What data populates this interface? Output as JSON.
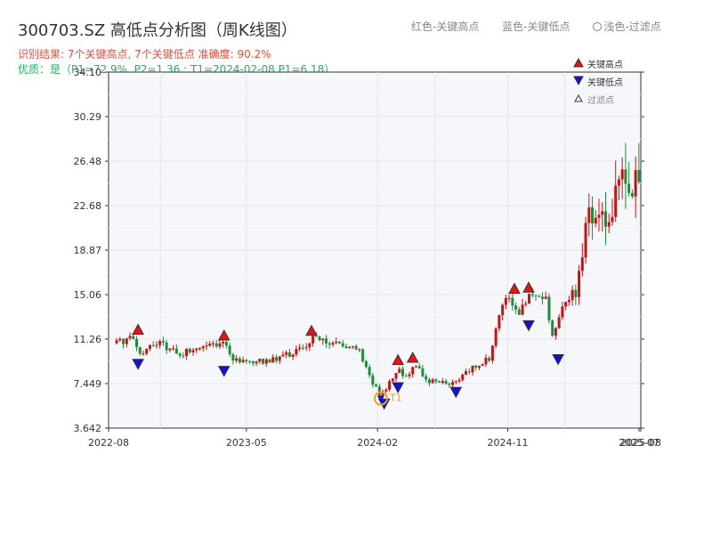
{
  "title": "300703.SZ 高低点分析图（周K线图）",
  "result_line": "识别结果: 7个关键高点, 7个关键低点  准确度: 90.2%",
  "quality_line": "优质：是（P1=72.9%, P2=1.36 ; T1=2024-02-08 P1=6.18）",
  "top_legend": {
    "item1": "红色-关键高点",
    "item2": "蓝色-关键低点",
    "item3": "浅色-过滤点"
  },
  "colors": {
    "up": "#cc1111",
    "down": "#1a8f3a",
    "high_marker": "#ee1111",
    "low_marker": "#1111dd",
    "t1_marker": "#f0a020",
    "plot_bg": "#f5f7fa",
    "grid": "#e2e6ec"
  },
  "chart_data": {
    "type": "candlestick",
    "ylim": [
      3.642,
      34.1
    ],
    "yticks": [
      "3.642",
      "7.449",
      "11.26",
      "15.06",
      "18.87",
      "22.68",
      "26.48",
      "30.29",
      "34.10"
    ],
    "xticks": [
      "2022-08",
      "2023-05",
      "2024-02",
      "2024-11",
      "2025-07",
      "2025-08"
    ],
    "legend": {
      "high": "关键高点",
      "low": "关键低点",
      "filtered": "过滤点"
    },
    "t1_label": "T1",
    "key_points": {
      "highs": [
        {
          "date": "2022-09",
          "value": 11.6
        },
        {
          "date": "2023-03",
          "value": 11.1
        },
        {
          "date": "2023-09",
          "value": 11.5
        },
        {
          "date": "2024-03",
          "value": 9.0
        },
        {
          "date": "2024-04",
          "value": 9.2
        },
        {
          "date": "2024-11",
          "value": 15.1
        },
        {
          "date": "2024-12",
          "value": 15.2
        }
      ],
      "lows": [
        {
          "date": "2022-09",
          "value": 9.6
        },
        {
          "date": "2023-03",
          "value": 9.0
        },
        {
          "date": "2024-02",
          "value": 6.2
        },
        {
          "date": "2024-03",
          "value": 7.6
        },
        {
          "date": "2024-07",
          "value": 7.2
        },
        {
          "date": "2024-12",
          "value": 12.9
        },
        {
          "date": "2025-02",
          "value": 10.0
        }
      ],
      "t1": {
        "date": "2024-02-08",
        "value": 6.18
      }
    }
  }
}
